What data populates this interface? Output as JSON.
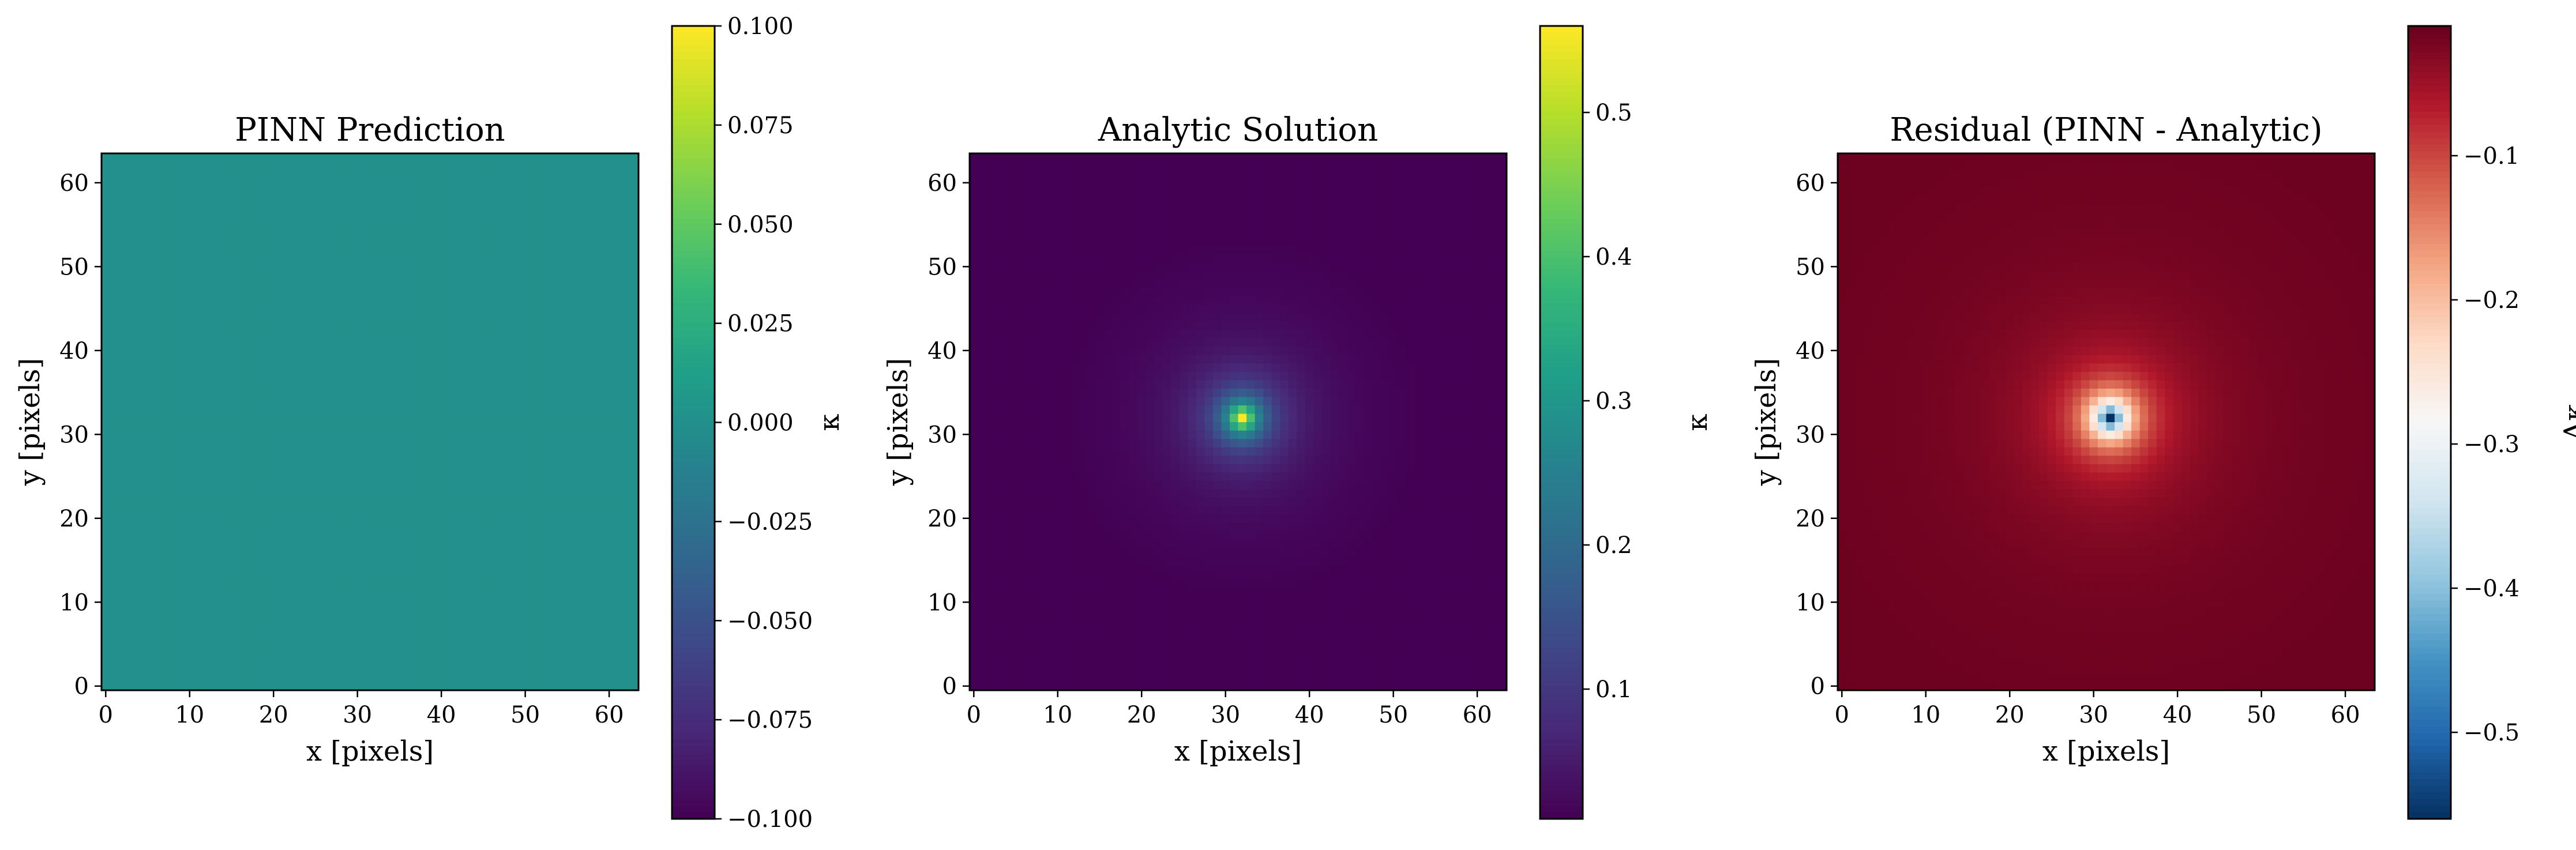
{
  "chart_data": [
    {
      "type": "heatmap",
      "title": "PINN Prediction",
      "xlabel": "x [pixels]",
      "ylabel": "y [pixels]",
      "grid": false,
      "xlim": [
        -0.5,
        63.5
      ],
      "ylim": [
        -0.5,
        63.5
      ],
      "xticks": [
        0,
        10,
        20,
        30,
        40,
        50,
        60
      ],
      "yticks": [
        0,
        10,
        20,
        30,
        40,
        50,
        60
      ],
      "shape": [
        64,
        64
      ],
      "field": {
        "kind": "constant",
        "value": 0.0
      },
      "colormap": "viridis",
      "colorbar": {
        "label": "κ",
        "range": [
          -0.1,
          0.1
        ],
        "ticks": [
          0.1,
          0.075,
          0.05,
          0.025,
          0.0,
          -0.025,
          -0.05,
          -0.075,
          -0.1
        ],
        "tick_labels": [
          "0.100",
          "0.075",
          "0.050",
          "0.025",
          "0.000",
          "−0.025",
          "−0.050",
          "−0.075",
          "−0.100"
        ]
      }
    },
    {
      "type": "heatmap",
      "title": "Analytic Solution",
      "xlabel": "x [pixels]",
      "ylabel": "y [pixels]",
      "grid": false,
      "xlim": [
        -0.5,
        63.5
      ],
      "ylim": [
        -0.5,
        63.5
      ],
      "xticks": [
        0,
        10,
        20,
        30,
        40,
        50,
        60
      ],
      "yticks": [
        0,
        10,
        20,
        30,
        40,
        50,
        60
      ],
      "shape": [
        64,
        64
      ],
      "field": {
        "kind": "radial",
        "center": [
          32,
          32
        ],
        "peak": 0.56,
        "floor": 0.0,
        "scale": 1.8
      },
      "colormap": "viridis",
      "colorbar": {
        "label": "κ",
        "range": [
          0.01,
          0.56
        ],
        "ticks": [
          0.5,
          0.4,
          0.3,
          0.2,
          0.1
        ],
        "tick_labels": [
          "0.5",
          "0.4",
          "0.3",
          "0.2",
          "0.1"
        ]
      }
    },
    {
      "type": "heatmap",
      "title": "Residual (PINN - Analytic)",
      "xlabel": "x [pixels]",
      "ylabel": "y [pixels]",
      "grid": false,
      "xlim": [
        -0.5,
        63.5
      ],
      "ylim": [
        -0.5,
        63.5
      ],
      "xticks": [
        0,
        10,
        20,
        30,
        40,
        50,
        60
      ],
      "yticks": [
        0,
        10,
        20,
        30,
        40,
        50,
        60
      ],
      "shape": [
        64,
        64
      ],
      "field": {
        "kind": "radial",
        "center": [
          32,
          32
        ],
        "peak": -0.56,
        "floor": -0.01,
        "scale": 1.8
      },
      "colormap": "RdBu_r",
      "colorbar": {
        "label": "Δκ",
        "range": [
          -0.56,
          -0.01
        ],
        "ticks": [
          -0.1,
          -0.2,
          -0.3,
          -0.4,
          -0.5
        ],
        "tick_labels": [
          "−0.1",
          "−0.2",
          "−0.3",
          "−0.4",
          "−0.5"
        ]
      }
    }
  ]
}
